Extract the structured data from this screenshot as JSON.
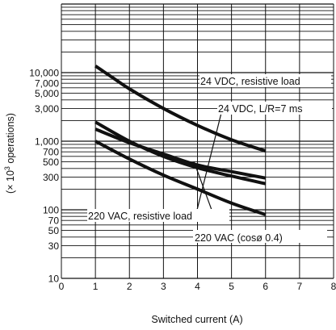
{
  "chart_data": {
    "type": "line",
    "title": "",
    "xlabel": "Switched current (A)",
    "ylabel": "(× 10³ operations)",
    "ylabel_prefix": "(× 10",
    "ylabel_exp": "3",
    "ylabel_suffix": " operations)",
    "x_scale": "linear",
    "y_scale": "log",
    "xlim": [
      0,
      8
    ],
    "ylim": [
      10,
      100000
    ],
    "grid": true,
    "x_ticks": [
      0,
      1,
      2,
      3,
      4,
      5,
      6,
      7,
      8
    ],
    "x_tick_labels": [
      "0",
      "1",
      "2",
      "3",
      "4",
      "5",
      "6",
      "7",
      "8"
    ],
    "y_ticks": [
      10,
      30,
      50,
      70,
      100,
      300,
      500,
      700,
      1000,
      3000,
      5000,
      7000,
      10000
    ],
    "y_tick_labels": [
      "10",
      "30",
      "50",
      "70",
      "100",
      "300",
      "500",
      "700",
      "1,000",
      "3,000",
      "5,000",
      "7,000",
      "10,000"
    ],
    "series": [
      {
        "x": [
          1,
          1.5,
          2,
          3,
          4,
          5,
          6
        ],
        "y": [
          12500,
          8500,
          5800,
          3000,
          1700,
          1050,
          720
        ]
      },
      {
        "x": [
          1,
          2,
          3,
          4,
          5,
          6
        ],
        "y": [
          1900,
          1000,
          600,
          410,
          310,
          240
        ]
      },
      {
        "x": [
          1,
          2,
          3,
          4,
          5,
          6
        ],
        "y": [
          1500,
          950,
          650,
          450,
          360,
          290
        ]
      },
      {
        "x": [
          1,
          2,
          3,
          4,
          5,
          6
        ],
        "y": [
          1000,
          550,
          320,
          200,
          125,
          85
        ]
      }
    ],
    "annotations": [
      {
        "text": "24 VDC, resistive load"
      },
      {
        "text": "24 VDC, L/R=7 ms"
      },
      {
        "text": "220 VAC, resistive load"
      },
      {
        "text": "220 VAC (cosø 0.4)"
      }
    ]
  }
}
